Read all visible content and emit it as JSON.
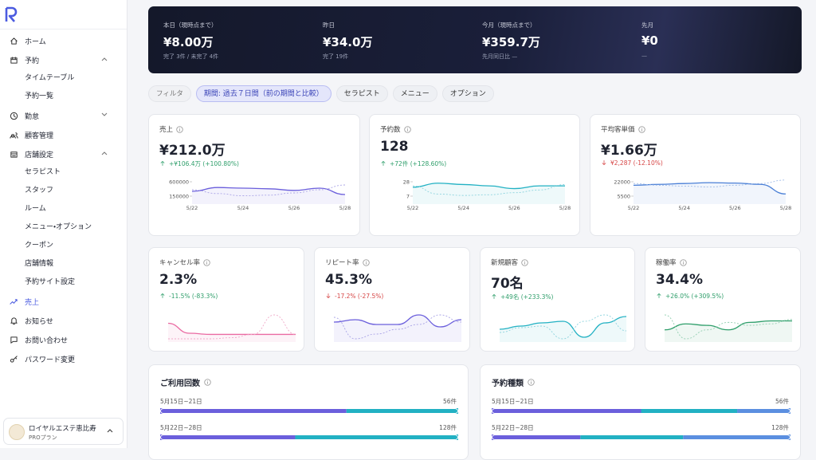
{
  "sidebar": {
    "nav": [
      {
        "label": "ホーム"
      },
      {
        "label": "予約",
        "expandable": true,
        "expanded": true,
        "children": [
          "タイムテーブル",
          "予約一覧"
        ]
      },
      {
        "label": "勤怠",
        "expandable": true,
        "expanded": false
      },
      {
        "label": "顧客管理"
      },
      {
        "label": "店舗設定",
        "expandable": true,
        "expanded": true,
        "children": [
          "セラピスト",
          "スタッフ",
          "ルーム",
          "メニュー・オプション",
          "クーポン",
          "店舗情報",
          "予約サイト設定"
        ]
      },
      {
        "label": "売上",
        "active": true
      },
      {
        "label": "お知らせ"
      },
      {
        "label": "お問い合わせ"
      },
      {
        "label": "パスワード変更"
      }
    ],
    "account": {
      "name": "ロイヤルエステ恵比寿",
      "plan": "PROプラン"
    }
  },
  "summary": [
    {
      "label": "本日（現時点まで）",
      "value": "¥8.00万",
      "sub": "完了 3件 / 未完了 4件"
    },
    {
      "label": "昨日",
      "value": "¥34.0万",
      "sub": "完了 19件"
    },
    {
      "label": "今月（現時点まで）",
      "value": "¥359.7万",
      "sub": "先月同日比 —"
    },
    {
      "label": "先月",
      "value": "¥0",
      "sub": "—"
    }
  ],
  "filters": [
    {
      "label": "フィルタ"
    },
    {
      "label": "期間: 過去７日間（前の期間と比較）",
      "selected": true
    },
    {
      "label": "セラピスト"
    },
    {
      "label": "メニュー"
    },
    {
      "label": "オプション"
    }
  ],
  "kpis": [
    {
      "label": "売上",
      "value": "¥212.0万",
      "change": "+¥106.4万 (+100.80%)",
      "trend": "up",
      "chart": {
        "type": "line",
        "categories": [
          "5/22",
          null,
          "5/24",
          null,
          "5/26",
          null,
          "5/28"
        ],
        "ylim": [
          0,
          750000
        ],
        "yticks": [
          600000,
          150000
        ],
        "series": [
          {
            "color": "#6b5fdc",
            "values": [
              300000,
              420000,
              400000,
              380000,
              330000,
              400000,
              200000
            ]
          },
          {
            "color": "#a9a3e6",
            "dashed": true,
            "values": [
              350000,
              230000,
              160000,
              180000,
              250000,
              350000,
              500000
            ]
          }
        ]
      }
    },
    {
      "label": "予約数",
      "value": "128",
      "change": "+72件 (+128.60%)",
      "trend": "up",
      "chart": {
        "type": "line",
        "categories": [
          "5/22",
          null,
          "5/24",
          null,
          "5/26",
          null,
          "5/28"
        ],
        "ylim": [
          0,
          35
        ],
        "yticks": [
          28,
          7
        ],
        "series": [
          {
            "color": "#22b1c3",
            "values": [
              20,
              26,
              24,
              22,
              18,
              22,
              22
            ]
          },
          {
            "color": "#8fd4de",
            "dashed": true,
            "values": [
              22,
              10,
              8,
              9,
              12,
              16,
              24
            ]
          }
        ]
      }
    },
    {
      "label": "平均客単価",
      "value": "¥1.66万",
      "change": "¥2,287 (-12.10%)",
      "trend": "down",
      "chart": {
        "type": "line",
        "categories": [
          "5/22",
          null,
          "5/24",
          null,
          "5/26",
          null,
          "5/28"
        ],
        "ylim": [
          0,
          27500
        ],
        "yticks": [
          22000,
          5500
        ],
        "series": [
          {
            "color": "#4a7fd6",
            "values": [
              18000,
              19000,
              20000,
              21000,
              20500,
              19000,
              8000
            ]
          },
          {
            "color": "#9fbbe8",
            "dashed": true,
            "values": [
              20000,
              18000,
              17000,
              16000,
              18000,
              20000,
              24000
            ]
          }
        ]
      }
    },
    {
      "label": "キャンセル率",
      "value": "2.3%",
      "change": "-11.5% (-83.3%)",
      "trend": "up",
      "chart": {
        "type": "line",
        "series": [
          {
            "color": "#ea6aa2",
            "values": [
              3,
              1.2,
              1,
              1,
              1,
              1,
              1
            ]
          },
          {
            "color": "#f0a9c8",
            "dashed": true,
            "values": [
              0.2,
              0.2,
              0.2,
              0.4,
              1,
              4.5,
              1
            ]
          }
        ]
      }
    },
    {
      "label": "リピート率",
      "value": "45.3%",
      "change": "-17.2% (-27.5%)",
      "trend": "down",
      "chart": {
        "type": "line",
        "series": [
          {
            "color": "#6b5fdc",
            "values": [
              45,
              46,
              44,
              44,
              48,
              43,
              46
            ]
          },
          {
            "color": "#a9a3e6",
            "dashed": true,
            "values": [
              47,
              38,
              40,
              42,
              44,
              48,
              45
            ]
          }
        ]
      }
    },
    {
      "label": "新規顧客",
      "value": "70名",
      "change": "+49名 (+233.3%)",
      "trend": "up",
      "chart": {
        "type": "line",
        "series": [
          {
            "color": "#22b1c3",
            "values": [
              62,
              66,
              70,
              72,
              52,
              70,
              78
            ]
          },
          {
            "color": "#8fd4de",
            "dashed": true,
            "values": [
              58,
              64,
              66,
              50,
              72,
              80,
              60
            ]
          }
        ]
      }
    },
    {
      "label": "稼働率",
      "value": "34.4%",
      "change": "+26.0% (+309.5%)",
      "trend": "up",
      "chart": {
        "type": "line",
        "series": [
          {
            "color": "#2e9e6a",
            "values": [
              30,
              34,
              33,
              30,
              35,
              36,
              36
            ]
          },
          {
            "color": "#93cfb2",
            "dashed": true,
            "values": [
              40,
              24,
              30,
              35,
              33,
              34,
              37
            ]
          }
        ]
      }
    }
  ],
  "breakdowns": [
    {
      "title": "ご利用回数",
      "rows": [
        {
          "period": "5月15日~21日",
          "total": "56件",
          "values": [
            35,
            21
          ]
        },
        {
          "period": "5月22日~28日",
          "total": "128件",
          "values": [
            58,
            70
          ]
        }
      ],
      "colors": [
        "#6b5fdc",
        "#22b1c3"
      ]
    },
    {
      "title": "予約種類",
      "rows": [
        {
          "period": "5月15日~21日",
          "total": "56件",
          "values": [
            28,
            18,
            10
          ]
        },
        {
          "period": "5月22日~28日",
          "total": "128件",
          "values": [
            38,
            44,
            46
          ]
        }
      ],
      "colors": [
        "#6b5fdc",
        "#22b1c3",
        "#5b8fe0"
      ]
    }
  ]
}
